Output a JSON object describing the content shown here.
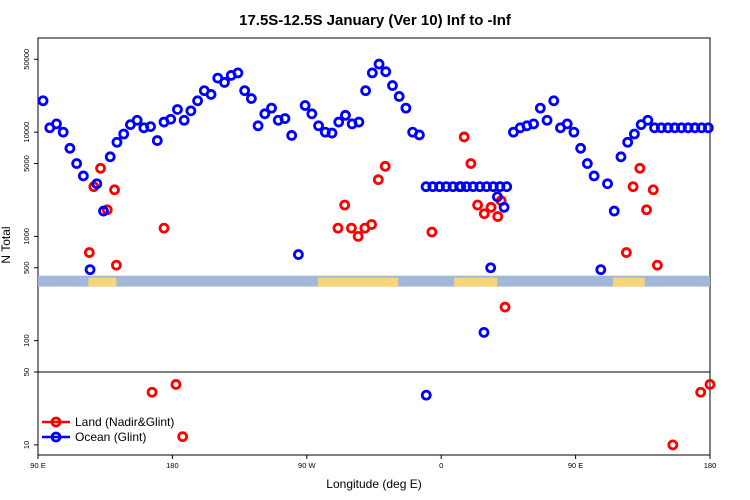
{
  "chart_data": {
    "type": "scatter",
    "title": "17.5S-12.5S January (Ver 10)   Inf to -Inf",
    "xlabel": "Longitude (deg E)",
    "ylabel": "N Total",
    "xlim": [
      90,
      450
    ],
    "y_scale": "log",
    "ylim": [
      8,
      80000
    ],
    "x_ticks": [
      {
        "value": 90,
        "label": "90 E"
      },
      {
        "value": 162,
        "label": "180"
      },
      {
        "value": 234,
        "label": "90 W"
      },
      {
        "value": 306,
        "label": "0"
      },
      {
        "value": 378,
        "label": "90 E"
      },
      {
        "value": 450,
        "label": "180"
      }
    ],
    "y_ticks": [
      {
        "value": 10,
        "label": "10"
      },
      {
        "value": 50,
        "label": "50"
      },
      {
        "value": 100,
        "label": "100"
      },
      {
        "value": 500,
        "label": "500"
      },
      {
        "value": 1000,
        "label": "1000"
      },
      {
        "value": 5000,
        "label": "5000"
      },
      {
        "value": 10000,
        "label": "10000"
      },
      {
        "value": 50000,
        "label": "50000"
      }
    ],
    "reference_line": 50,
    "land_band": {
      "y_range": [
        330,
        420
      ],
      "ocean_color": "#a3b7d9",
      "land_color": "#f7d57a",
      "land_segments": [
        [
          117,
          132
        ],
        [
          240,
          283
        ],
        [
          313,
          336
        ],
        [
          398,
          415
        ]
      ]
    },
    "series": [
      {
        "name": "Land (Nadir&Glint)",
        "color": "#ff0000",
        "x": [
          117.5,
          119.9,
          123.5,
          127.1,
          131,
          132,
          151.1,
          157.5,
          163.9,
          167.5,
          250.7,
          254.3,
          257.9,
          261.5,
          265.1,
          268.7,
          272.3,
          276,
          301,
          318.3,
          321.9,
          325.5,
          329.1,
          332.7,
          336.3,
          338.1,
          340.2,
          405.2,
          408.8,
          412.4,
          416,
          419.6,
          421.8,
          430.1,
          445,
          450
        ],
        "values": [
          700,
          3000,
          4500,
          1800,
          2800,
          530,
          32,
          1200,
          38,
          12,
          1200,
          2000,
          1200,
          1000,
          1200,
          1300,
          3500,
          4700,
          1100,
          9000,
          5000,
          2000,
          1650,
          1900,
          1550,
          2200,
          210,
          700,
          3000,
          4500,
          1800,
          2800,
          530,
          10,
          32,
          38
        ]
      },
      {
        "name": "Ocean (Glint)",
        "color": "#0000ff",
        "x": [
          92.7,
          96.3,
          99.9,
          103.5,
          107.1,
          110.7,
          114.3,
          117.9,
          121.5,
          125.1,
          128.7,
          132.3,
          135.9,
          139.5,
          143.1,
          146.7,
          150.3,
          153.9,
          157.5,
          161.1,
          164.7,
          168.3,
          171.9,
          175.5,
          179.1,
          182.7,
          186.3,
          189.9,
          193.5,
          197.1,
          200.7,
          204.3,
          207.9,
          211.5,
          215.1,
          218.7,
          222.3,
          225.9,
          229.5,
          233.1,
          236.7,
          240.3,
          243.9,
          247.5,
          251.1,
          254.7,
          258.3,
          261.9,
          265.5,
          269.1,
          272.7,
          276.3,
          279.9,
          283.5,
          287.1,
          290.7,
          294.3,
          297.9,
          301.5,
          305.1,
          308.7,
          312.3,
          315.9,
          319.5,
          323.1,
          326.7,
          330.3,
          333.9,
          337.5,
          341.1,
          344.7,
          348.3,
          351.9,
          355.5,
          359.1,
          362.7,
          366.3,
          369.9,
          373.5,
          377.1,
          380.7,
          384.3,
          387.9,
          391.5,
          395.1,
          398.7,
          402.3,
          405.9,
          409.5,
          413.1,
          416.7,
          420.3,
          423.9,
          427.5,
          431.1,
          434.7,
          438.3,
          441.9,
          445.5,
          449.1
        ],
        "values": [
          20000,
          11000,
          12000,
          10000,
          7000,
          5000,
          3800,
          480,
          3200,
          1750,
          5800,
          8000,
          9600,
          11800,
          13000,
          11000,
          11300,
          8300,
          12500,
          13300,
          16500,
          13000,
          16000,
          20000,
          25000,
          23000,
          33000,
          30000,
          35000,
          37000,
          25000,
          21000,
          11500,
          15000,
          17000,
          13000,
          13500,
          9300,
          670,
          18000,
          15000,
          11500,
          10000,
          9800,
          12500,
          14500,
          12000,
          12500,
          25000,
          37000,
          45000,
          38000,
          28000,
          22000,
          17000,
          10000,
          9400,
          3000,
          3000,
          3000,
          3000,
          3000,
          3000,
          3000,
          3000,
          3000,
          3000,
          3000,
          3000,
          3000,
          10000,
          11000,
          11500,
          12000,
          17000,
          13000,
          20000,
          11000,
          12000,
          10000,
          7000,
          5000,
          3800,
          480,
          3200,
          1750,
          5800,
          8000,
          9600,
          11800,
          13000,
          11000,
          11000,
          11000,
          11000,
          11000,
          11000,
          11000,
          11000,
          11000
        ]
      }
    ],
    "extra_points": {
      "ocean_low": [
        {
          "x": 298,
          "value": 30
        },
        {
          "x": 316.5,
          "value": 3000
        },
        {
          "x": 328.9,
          "value": 120
        },
        {
          "x": 332.5,
          "value": 500
        },
        {
          "x": 336.1,
          "value": 2400
        },
        {
          "x": 339.7,
          "value": 1900
        }
      ]
    }
  }
}
